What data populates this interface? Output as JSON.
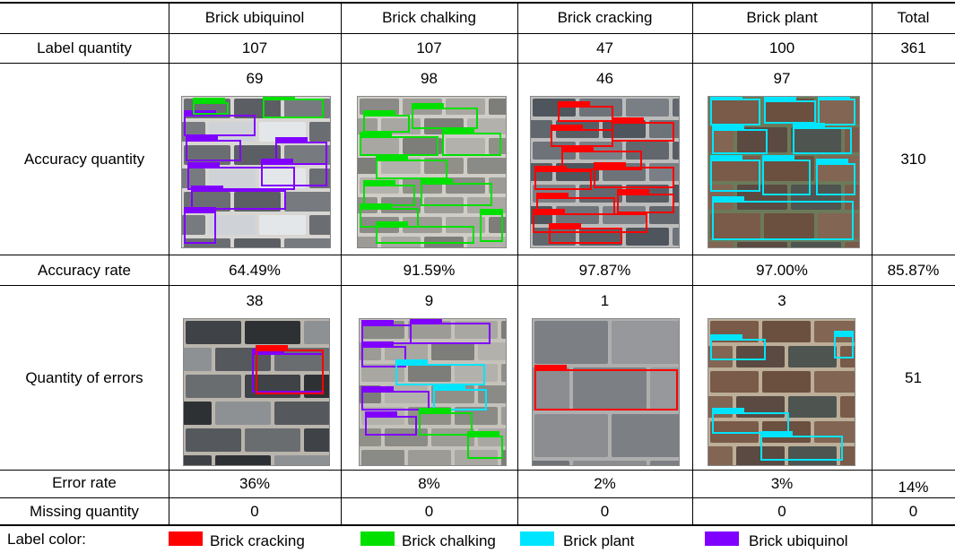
{
  "columns": [
    "",
    "Brick ubiquinol",
    "Brick chalking",
    "Brick cracking",
    "Brick plant",
    "Total"
  ],
  "rows": {
    "label_quantity": {
      "label": "Label quantity",
      "values": [
        "107",
        "107",
        "47",
        "100",
        "361"
      ]
    },
    "accuracy_quantity": {
      "label": "Accuracy quantity",
      "values": [
        "69",
        "98",
        "46",
        "97",
        "310"
      ]
    },
    "accuracy_rate": {
      "label": "Accuracy rate",
      "values": [
        "64.49%",
        "91.59%",
        "97.87%",
        "97.00%",
        "85.87%"
      ]
    },
    "quantity_of_errors": {
      "label": "Quantity of errors",
      "values": [
        "38",
        "9",
        "1",
        "3",
        "51"
      ]
    },
    "error_rate": {
      "label": "Error rate",
      "values": [
        "36%",
        "8%",
        "2%",
        "3%",
        "14%"
      ]
    },
    "missing_quantity": {
      "label": "Missing quantity",
      "values": [
        "0",
        "0",
        "0",
        "0",
        "0"
      ]
    }
  },
  "legend": {
    "title": "Label color:",
    "items": [
      {
        "label": "Brick cracking",
        "color": "#ff0000"
      },
      {
        "label": "Brick chalking",
        "color": "#00e000"
      },
      {
        "label": "Brick plant",
        "color": "#00e5ff"
      },
      {
        "label": "Brick ubiquinol",
        "color": "#8000ff"
      }
    ]
  },
  "colors": {
    "ubiquinol": "#8000ff",
    "chalking": "#00e000",
    "cracking": "#ff0000",
    "plant": "#00e5ff",
    "brick_gray": "#6f7378",
    "mortar": "#c9c6bf"
  }
}
